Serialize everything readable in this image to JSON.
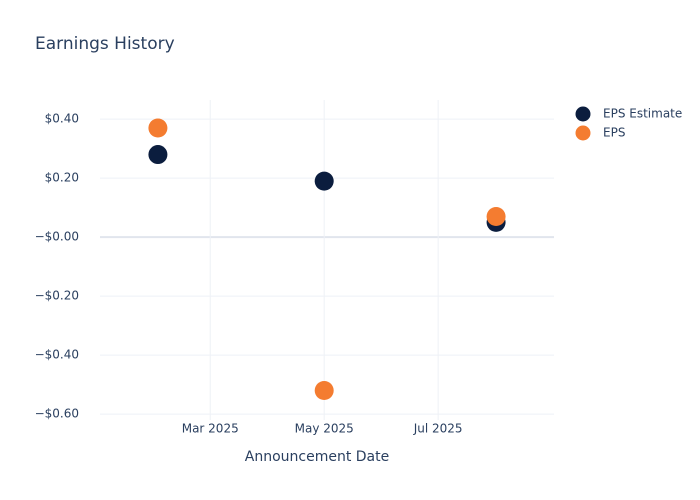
{
  "chart_data": {
    "type": "scatter",
    "title": "Earnings History",
    "x_label": "Announcement Date",
    "x": [
      "2025-02",
      "2025-05",
      "2025-08"
    ],
    "series": [
      {
        "name": "EPS Estimate",
        "color": "#0b1d3e",
        "values": [
          0.28,
          0.19,
          0.05
        ]
      },
      {
        "name": "EPS",
        "color": "#f47c30",
        "values": [
          0.37,
          -0.52,
          0.07
        ]
      }
    ],
    "xlim": [
      "2025-01",
      "2025-09"
    ],
    "xticks": [
      {
        "value": "2025-03",
        "label": "Mar 2025"
      },
      {
        "value": "2025-05",
        "label": "May 2025"
      },
      {
        "value": "2025-07",
        "label": "Jul 2025"
      }
    ],
    "ylim": [
      -0.62,
      0.465
    ],
    "yticks": [
      {
        "value": -0.6,
        "label": "−$0.60"
      },
      {
        "value": -0.4,
        "label": "−$0.40"
      },
      {
        "value": -0.2,
        "label": "−$0.20"
      },
      {
        "value": 0,
        "label": "−$0.00"
      },
      {
        "value": 0.2,
        "label": "$0.20"
      },
      {
        "value": 0.4,
        "label": "$0.40"
      }
    ],
    "grid": true,
    "legend": "top-right"
  }
}
